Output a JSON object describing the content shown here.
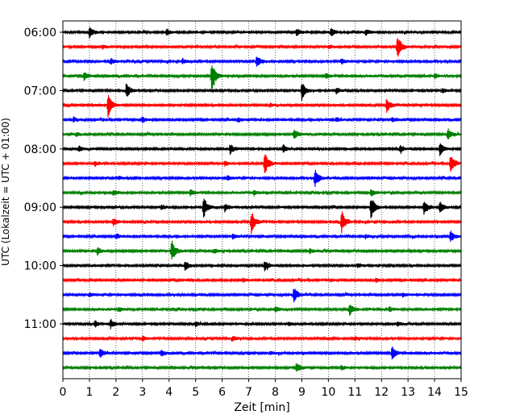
{
  "chart_data": {
    "type": "line",
    "title": "",
    "xlabel": "Zeit  [min]",
    "ylabel": "UTC (Lokalzeit = UTC + 01:00)",
    "xlim": [
      0,
      15
    ],
    "x_ticks": [
      0,
      1,
      2,
      3,
      4,
      5,
      6,
      7,
      8,
      9,
      10,
      11,
      12,
      13,
      14,
      15
    ],
    "y_tick_labels": [
      "06:00",
      "07:00",
      "08:00",
      "09:00",
      "10:00",
      "11:00"
    ],
    "y_tick_every_n_traces": 4,
    "vertical_grid": "dotted",
    "line_colors": [
      "#000000",
      "#ff0000",
      "#0000ff",
      "#008000"
    ],
    "traces": [
      {
        "start": "06:00",
        "events": [
          {
            "t": 1.0,
            "amp": 0.9
          },
          {
            "t": 3.9,
            "amp": 0.6
          },
          {
            "t": 8.8,
            "amp": 0.6
          },
          {
            "t": 10.1,
            "amp": 0.7
          },
          {
            "t": 11.4,
            "amp": 0.5
          }
        ]
      },
      {
        "start": "06:15",
        "events": [
          {
            "t": 1.5,
            "amp": 0.3
          },
          {
            "t": 10.0,
            "amp": 0.3
          },
          {
            "t": 12.6,
            "amp": 2.0
          }
        ]
      },
      {
        "start": "06:30",
        "events": [
          {
            "t": 1.8,
            "amp": 0.5
          },
          {
            "t": 4.5,
            "amp": 0.5
          },
          {
            "t": 7.3,
            "amp": 1.1
          },
          {
            "t": 10.5,
            "amp": 0.4
          }
        ]
      },
      {
        "start": "06:45",
        "events": [
          {
            "t": 0.8,
            "amp": 0.7
          },
          {
            "t": 5.6,
            "amp": 2.6
          },
          {
            "t": 9.9,
            "amp": 0.5
          },
          {
            "t": 14.0,
            "amp": 0.4
          }
        ]
      },
      {
        "start": "07:00",
        "events": [
          {
            "t": 2.4,
            "amp": 1.2
          },
          {
            "t": 9.0,
            "amp": 1.5
          },
          {
            "t": 10.3,
            "amp": 0.5
          },
          {
            "t": 14.3,
            "amp": 0.4
          }
        ]
      },
      {
        "start": "07:15",
        "events": [
          {
            "t": 1.7,
            "amp": 1.9
          },
          {
            "t": 7.8,
            "amp": 0.3
          },
          {
            "t": 12.2,
            "amp": 1.2
          }
        ]
      },
      {
        "start": "07:30",
        "events": [
          {
            "t": 0.4,
            "amp": 0.4
          },
          {
            "t": 3.0,
            "amp": 0.5
          },
          {
            "t": 6.6,
            "amp": 0.4
          },
          {
            "t": 10.3,
            "amp": 0.4
          },
          {
            "t": 12.4,
            "amp": 0.4
          }
        ]
      },
      {
        "start": "07:45",
        "events": [
          {
            "t": 0.5,
            "amp": 0.3
          },
          {
            "t": 8.7,
            "amp": 0.8
          },
          {
            "t": 14.5,
            "amp": 1.0
          }
        ]
      },
      {
        "start": "08:00",
        "events": [
          {
            "t": 0.6,
            "amp": 0.5
          },
          {
            "t": 6.3,
            "amp": 0.8
          },
          {
            "t": 8.3,
            "amp": 0.6
          },
          {
            "t": 12.7,
            "amp": 0.6
          },
          {
            "t": 14.2,
            "amp": 1.0
          }
        ]
      },
      {
        "start": "08:15",
        "events": [
          {
            "t": 1.2,
            "amp": 0.4
          },
          {
            "t": 6.1,
            "amp": 0.4
          },
          {
            "t": 7.6,
            "amp": 2.0
          },
          {
            "t": 14.6,
            "amp": 1.6
          }
        ]
      },
      {
        "start": "08:30",
        "events": [
          {
            "t": 2.1,
            "amp": 0.3
          },
          {
            "t": 6.2,
            "amp": 0.4
          },
          {
            "t": 9.5,
            "amp": 1.5
          }
        ]
      },
      {
        "start": "08:45",
        "events": [
          {
            "t": 1.9,
            "amp": 0.5
          },
          {
            "t": 4.8,
            "amp": 0.6
          },
          {
            "t": 7.2,
            "amp": 0.4
          },
          {
            "t": 11.6,
            "amp": 0.6
          }
        ]
      },
      {
        "start": "09:00",
        "events": [
          {
            "t": 3.7,
            "amp": 0.4
          },
          {
            "t": 5.3,
            "amp": 1.8
          },
          {
            "t": 6.1,
            "amp": 0.6
          },
          {
            "t": 11.6,
            "amp": 1.9
          },
          {
            "t": 13.6,
            "amp": 1.3
          },
          {
            "t": 14.2,
            "amp": 1.0
          }
        ]
      },
      {
        "start": "09:15",
        "events": [
          {
            "t": 1.9,
            "amp": 0.6
          },
          {
            "t": 7.1,
            "amp": 1.9
          },
          {
            "t": 10.5,
            "amp": 1.8
          }
        ]
      },
      {
        "start": "09:30",
        "events": [
          {
            "t": 2.0,
            "amp": 0.4
          },
          {
            "t": 6.4,
            "amp": 0.4
          },
          {
            "t": 11.4,
            "amp": 0.3
          },
          {
            "t": 14.6,
            "amp": 0.9
          }
        ]
      },
      {
        "start": "09:45",
        "events": [
          {
            "t": 1.3,
            "amp": 0.6
          },
          {
            "t": 4.1,
            "amp": 1.8
          },
          {
            "t": 5.7,
            "amp": 0.4
          },
          {
            "t": 9.3,
            "amp": 0.4
          }
        ]
      },
      {
        "start": "10:00",
        "events": [
          {
            "t": 4.6,
            "amp": 0.8
          },
          {
            "t": 7.6,
            "amp": 0.9
          },
          {
            "t": 11.1,
            "amp": 0.4
          }
        ]
      },
      {
        "start": "10:15",
        "events": [
          {
            "t": 6.8,
            "amp": 0.3
          },
          {
            "t": 11.8,
            "amp": 0.3
          }
        ]
      },
      {
        "start": "10:30",
        "events": [
          {
            "t": 1.0,
            "amp": 0.3
          },
          {
            "t": 8.7,
            "amp": 1.3
          },
          {
            "t": 12.8,
            "amp": 0.3
          }
        ]
      },
      {
        "start": "10:45",
        "events": [
          {
            "t": 2.1,
            "amp": 0.4
          },
          {
            "t": 8.0,
            "amp": 0.5
          },
          {
            "t": 10.8,
            "amp": 1.0
          },
          {
            "t": 12.3,
            "amp": 0.4
          }
        ]
      },
      {
        "start": "11:00",
        "events": [
          {
            "t": 1.2,
            "amp": 0.5
          },
          {
            "t": 1.8,
            "amp": 0.7
          },
          {
            "t": 5.0,
            "amp": 0.4
          },
          {
            "t": 8.5,
            "amp": 0.4
          },
          {
            "t": 12.6,
            "amp": 0.4
          }
        ]
      },
      {
        "start": "11:15",
        "events": [
          {
            "t": 3.0,
            "amp": 0.4
          },
          {
            "t": 6.4,
            "amp": 0.4
          },
          {
            "t": 11.0,
            "amp": 0.3
          }
        ]
      },
      {
        "start": "11:30",
        "events": [
          {
            "t": 1.4,
            "amp": 0.8
          },
          {
            "t": 3.7,
            "amp": 0.6
          },
          {
            "t": 7.8,
            "amp": 0.3
          },
          {
            "t": 12.4,
            "amp": 1.2
          }
        ]
      },
      {
        "start": "11:45",
        "events": [
          {
            "t": 8.8,
            "amp": 0.9
          },
          {
            "t": 10.5,
            "amp": 0.3
          }
        ]
      }
    ]
  }
}
